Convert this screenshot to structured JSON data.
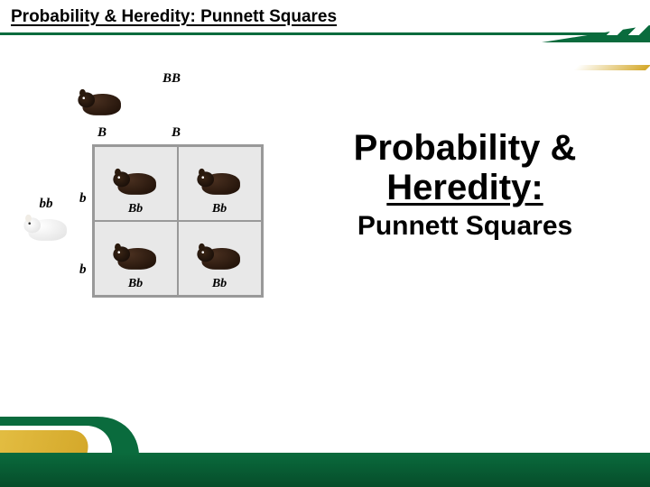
{
  "header": {
    "title": "Probability & Heredity: Punnett Squares"
  },
  "punnett": {
    "type": "punnett-square",
    "top_parent_genotype": "BB",
    "top_parent_phenotype": "black",
    "left_parent_genotype": "bb",
    "left_parent_phenotype": "white",
    "top_alleles": [
      "B",
      "B"
    ],
    "left_alleles": [
      "b",
      "b"
    ],
    "cells": [
      {
        "genotype": "Bb",
        "phenotype": "black"
      },
      {
        "genotype": "Bb",
        "phenotype": "black"
      },
      {
        "genotype": "Bb",
        "phenotype": "black"
      },
      {
        "genotype": "Bb",
        "phenotype": "black"
      }
    ],
    "grid_border_color": "#999999",
    "grid_background_color": "#e8e8e8",
    "label_font_family": "Georgia, serif",
    "label_font_style": "italic",
    "label_font_weight": "bold",
    "label_fontsize": 15,
    "cell_label_fontsize": 14
  },
  "main_title": {
    "line1": "Probability &",
    "line2": "Heredity:",
    "subtitle": "Punnett Squares",
    "title_fontsize": 40,
    "subtitle_fontsize": 30,
    "color": "#000000"
  },
  "theme": {
    "accent_green": "#0a6b3d",
    "accent_green_dark": "#064d2a",
    "accent_gold": "#d4a82a",
    "background": "#ffffff",
    "text_color": "#000000"
  }
}
